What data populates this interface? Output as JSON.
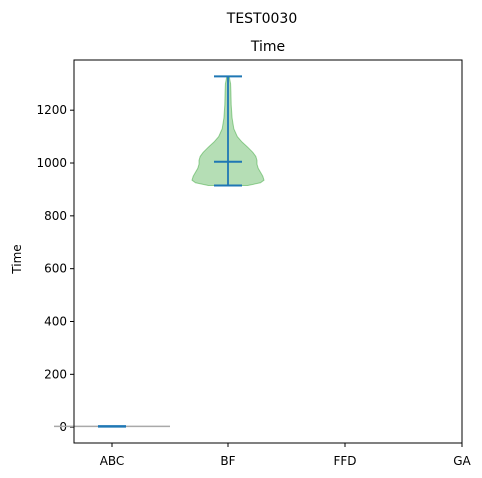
{
  "figure": {
    "suptitle": "TEST0030"
  },
  "chart_data": {
    "type": "violin",
    "title": "Time",
    "xlabel": "",
    "ylabel": "Time",
    "categories": [
      "ABC",
      "BF",
      "FFD",
      "GA"
    ],
    "ylim": [
      -60,
      1390
    ],
    "yticks": [
      0,
      200,
      400,
      600,
      800,
      1000,
      1200
    ],
    "grid": false,
    "violins": [
      {
        "category": "ABC",
        "min": 2,
        "max": 4,
        "mean": 3,
        "density": [
          [
            0,
            1.0
          ],
          [
            3,
            1.0
          ],
          [
            6,
            1.0
          ]
        ],
        "fill_color": "#a9a9a9"
      },
      {
        "category": "BF",
        "min": 915,
        "max": 1328,
        "mean": 1005,
        "density": [
          [
            915,
            0.34
          ],
          [
            925,
            0.56
          ],
          [
            935,
            0.62
          ],
          [
            950,
            0.6
          ],
          [
            965,
            0.56
          ],
          [
            980,
            0.52
          ],
          [
            995,
            0.5
          ],
          [
            1010,
            0.5
          ],
          [
            1025,
            0.48
          ],
          [
            1040,
            0.43
          ],
          [
            1060,
            0.34
          ],
          [
            1080,
            0.24
          ],
          [
            1100,
            0.16
          ],
          [
            1130,
            0.1
          ],
          [
            1170,
            0.07
          ],
          [
            1220,
            0.055
          ],
          [
            1270,
            0.05
          ],
          [
            1300,
            0.045
          ],
          [
            1328,
            0.02
          ]
        ],
        "fill_color": "#2ca02c"
      }
    ],
    "colors": {
      "lines": "#1f77b4",
      "body": "#2ca02c"
    }
  }
}
